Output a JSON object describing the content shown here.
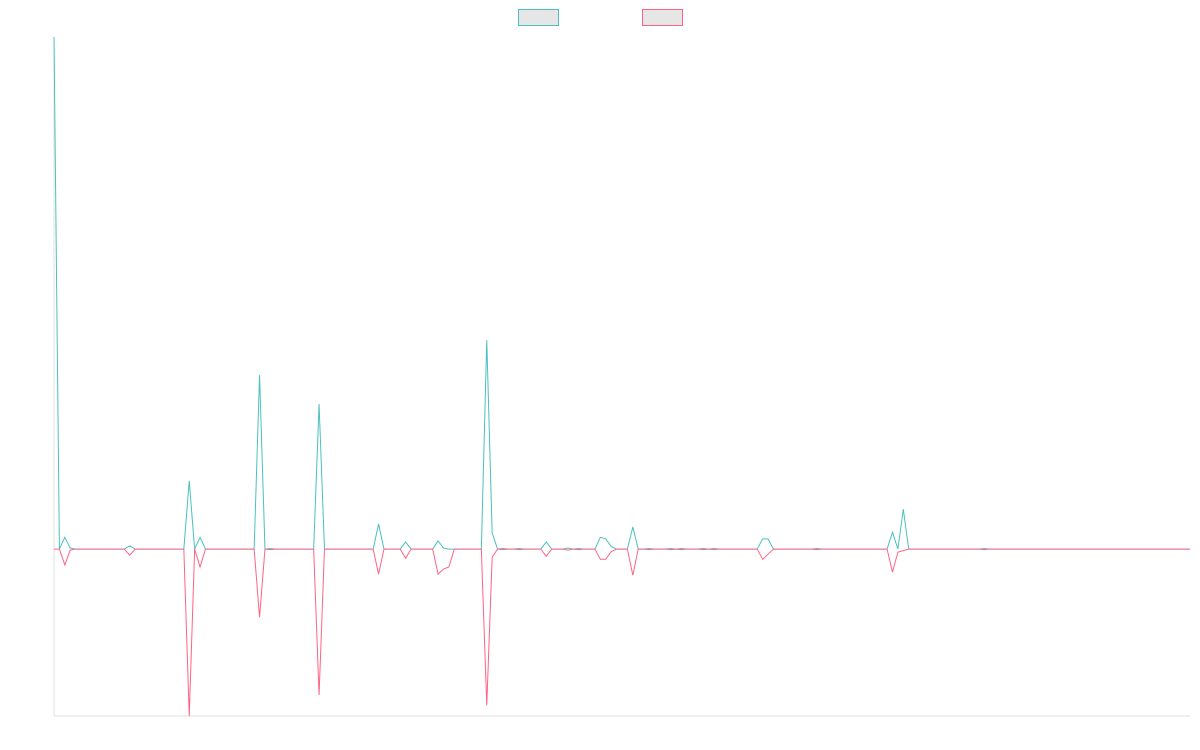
{
  "chart_data": {
    "type": "line",
    "categories": [
      null,
      null,
      null,
      null,
      null,
      null,
      null,
      null,
      null,
      null,
      null,
      null,
      null,
      null,
      null,
      null,
      null,
      null,
      null,
      null,
      null,
      null,
      null,
      null,
      null,
      null,
      null,
      null,
      null,
      null,
      null,
      null,
      null,
      null,
      null,
      null,
      null,
      null,
      null,
      null,
      null,
      null,
      null,
      null,
      null,
      null,
      null,
      null,
      null,
      null,
      null,
      null,
      null,
      null,
      null,
      null,
      null,
      null,
      null,
      null,
      null,
      null,
      null,
      null,
      null,
      null,
      null,
      null,
      null,
      null,
      null,
      null,
      null,
      null,
      null,
      null,
      null,
      null,
      null,
      null,
      null,
      null,
      null,
      null,
      null,
      null,
      null,
      null,
      null,
      null,
      null,
      null,
      null,
      null,
      null,
      null,
      null,
      null,
      null,
      null,
      null,
      null,
      null,
      null,
      null,
      null,
      null,
      null,
      null,
      null,
      null,
      null,
      null,
      null,
      null,
      null,
      null,
      null,
      null,
      null,
      null,
      null,
      null,
      null,
      null,
      null,
      null,
      null,
      null,
      null,
      null,
      null,
      null,
      null,
      null,
      null,
      null,
      null,
      null,
      null,
      null,
      null,
      null,
      null,
      null,
      null,
      null,
      null,
      null,
      null,
      null,
      null,
      null,
      null,
      null,
      null,
      null,
      null,
      null,
      null,
      null,
      null,
      null,
      null,
      null,
      null,
      null,
      null,
      null,
      null,
      null,
      null,
      null,
      null,
      null,
      null,
      null,
      null,
      null,
      null,
      null,
      null,
      null,
      null,
      null,
      null,
      null,
      null,
      null,
      null,
      null,
      null,
      null,
      null,
      null,
      null,
      null,
      null,
      null,
      null,
      null,
      null,
      null,
      null,
      null,
      null,
      null,
      null,
      null,
      null,
      null
    ],
    "series": [
      {
        "color": "#4bc0c0",
        "values": [
          100,
          0,
          2.3,
          0.2,
          0,
          0,
          0,
          0,
          0,
          0,
          0,
          0,
          0,
          0,
          0.6,
          0,
          0,
          0,
          0,
          0,
          0,
          0,
          0,
          0,
          0,
          13.3,
          0,
          2.3,
          0,
          0,
          0,
          0,
          0,
          0,
          0,
          0,
          0,
          0,
          34,
          0,
          0.1,
          0,
          0,
          0,
          0,
          0,
          0,
          0,
          0,
          28.3,
          0,
          0,
          0,
          0,
          0,
          0,
          0,
          0,
          0,
          0,
          4.9,
          0,
          0,
          0,
          0,
          1.4,
          0,
          0,
          0,
          0,
          0,
          1.6,
          0.2,
          0,
          0,
          0,
          0,
          0,
          0,
          0,
          40.8,
          3.1,
          0,
          0.1,
          0,
          0,
          0.1,
          0,
          0,
          0,
          0,
          1.4,
          0,
          0,
          0,
          0.2,
          0,
          0.1,
          0,
          0,
          0,
          2.3,
          2.0,
          0.5,
          0,
          0,
          0,
          4.3,
          0,
          0,
          0.1,
          0,
          0,
          0,
          0.1,
          0,
          0.1,
          0,
          0,
          0,
          0.1,
          0,
          0.1,
          0,
          0,
          0,
          0,
          0,
          0,
          0,
          0,
          2.0,
          2.0,
          0,
          0,
          0,
          0,
          0,
          0,
          0,
          0,
          0.1,
          0,
          0,
          0,
          0,
          0,
          0,
          0,
          0,
          0,
          0,
          0,
          0,
          0,
          3.3,
          0,
          7.8,
          0,
          0,
          0,
          0,
          0,
          0,
          0,
          0,
          0,
          0,
          0,
          0,
          0,
          0,
          0.1,
          0,
          0,
          0,
          0,
          0,
          0,
          0,
          0,
          0,
          0,
          0,
          0,
          0,
          0,
          0,
          0,
          0,
          0,
          0,
          0,
          0,
          0,
          0,
          0,
          0,
          0,
          0,
          0,
          0,
          0,
          0,
          0,
          0,
          0,
          0,
          0,
          0,
          0
        ]
      },
      {
        "color": "#ff6384",
        "values": [
          0,
          0,
          -3.1,
          -0.2,
          0,
          0,
          0,
          0,
          0,
          0,
          0,
          0,
          0,
          0,
          -1.2,
          0,
          0,
          0,
          0,
          0,
          0,
          0,
          0,
          0,
          0,
          -32.6,
          0,
          -3.5,
          0,
          0,
          0,
          0,
          0,
          0,
          0,
          0,
          0,
          0,
          -13.3,
          0,
          -0.1,
          0,
          0,
          0,
          0,
          0,
          0,
          0,
          0,
          -28.5,
          0,
          0,
          0,
          0,
          0,
          0,
          0,
          0,
          0,
          0,
          -4.9,
          0,
          0,
          0,
          0,
          -1.8,
          0,
          0,
          0,
          0,
          0,
          -4.9,
          -3.9,
          -3.5,
          0,
          0,
          0,
          0,
          0,
          0,
          -30.5,
          -1.6,
          0,
          -0.1,
          0,
          0,
          -0.1,
          0,
          0,
          0,
          0,
          -1.4,
          0,
          0,
          0,
          -0.2,
          0,
          -0.1,
          0,
          0,
          0,
          -2.0,
          -2.0,
          -0.5,
          0,
          0,
          0,
          -5.1,
          0,
          0,
          -0.1,
          0,
          0,
          0,
          -0.1,
          0,
          -0.1,
          0,
          0,
          0,
          -0.1,
          0,
          -0.1,
          0,
          0,
          0,
          0,
          0,
          0,
          0,
          0,
          -2.0,
          -1.0,
          0,
          0,
          0,
          0,
          0,
          0,
          0,
          0,
          -0.1,
          0,
          0,
          0,
          0,
          0,
          0,
          0,
          0,
          0,
          0,
          0,
          0,
          0,
          -4.5,
          -0.6,
          -0.3,
          0,
          0,
          0,
          0,
          0,
          0,
          0,
          0,
          0,
          0,
          0,
          0,
          0,
          0,
          -0.1,
          0,
          0,
          0,
          0,
          0,
          0,
          0,
          0,
          0,
          0,
          0,
          0,
          0,
          0,
          0,
          0,
          0,
          0,
          0,
          0,
          0,
          0,
          0,
          0,
          0,
          0,
          0,
          0,
          0,
          0,
          0,
          0,
          0,
          0,
          0,
          0,
          0,
          0
        ]
      }
    ],
    "ylim": [
      -32.6,
      100
    ],
    "legend": "top"
  }
}
